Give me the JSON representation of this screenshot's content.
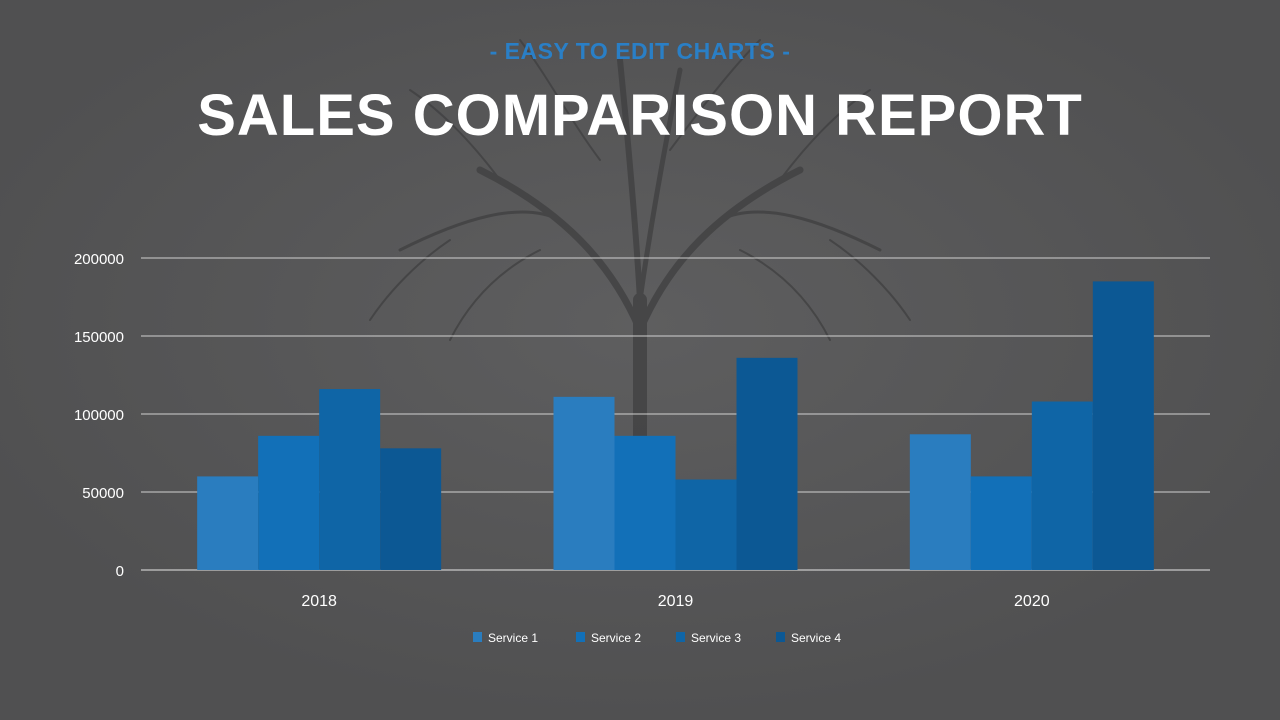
{
  "header": {
    "subtitle": "- EASY TO EDIT CHARTS -",
    "title": "SALES COMPARISON REPORT"
  },
  "colors": {
    "background": "#555556",
    "accent": "#2a7fc6",
    "service_1": "#2a7dbf",
    "service_2": "#1270b8",
    "service_3": "#0f65a6",
    "service_4": "#0c5894"
  },
  "chart_data": {
    "type": "bar",
    "title": "",
    "xlabel": "",
    "ylabel": "",
    "categories": [
      "2018",
      "2019",
      "2020"
    ],
    "series": [
      {
        "name": "Service 1",
        "values": [
          60000,
          111000,
          87000
        ]
      },
      {
        "name": "Service 2",
        "values": [
          86000,
          86000,
          60000
        ]
      },
      {
        "name": "Service 3",
        "values": [
          116000,
          58000,
          108000
        ]
      },
      {
        "name": "Service 4",
        "values": [
          78000,
          136000,
          185000
        ]
      }
    ],
    "ylim": [
      0,
      200000
    ],
    "yticks": [
      "0",
      "50000",
      "100000",
      "150000",
      "200000"
    ],
    "grid": true,
    "legend": "bottom"
  }
}
